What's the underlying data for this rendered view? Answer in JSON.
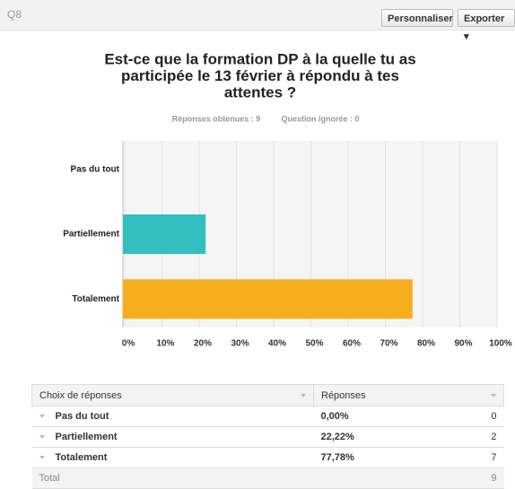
{
  "header": {
    "question": "Q8",
    "buttons": [
      "Personnaliser",
      "Exporter"
    ]
  },
  "chart_data": {
    "type": "bar",
    "orientation": "horizontal",
    "title": [
      "Est-ce que la formation DP à la quelle tu as",
      "participée le 13 février à répondu à tes",
      "attentes ?"
    ],
    "subtitle": [
      "Réponses obtenues : 9",
      "Question ignorée : 0"
    ],
    "categories": [
      "Pas du tout",
      "Partiellement",
      "Totalement"
    ],
    "values": [
      0,
      22.22,
      77.78
    ],
    "colors": [
      "#f5a81c",
      "#33bfbf",
      "#f7ae1e"
    ],
    "xlim": [
      0,
      100
    ],
    "xticks": [
      {
        "value": 0,
        "label": "0%"
      },
      {
        "value": 10,
        "label": "10%"
      },
      {
        "value": 20,
        "label": "20%"
      },
      {
        "value": 30,
        "label": "30%"
      },
      {
        "value": 40,
        "label": "40%"
      },
      {
        "value": 50,
        "label": "50%"
      },
      {
        "value": 60,
        "label": "60%"
      },
      {
        "value": 70,
        "label": "70%"
      },
      {
        "value": 80,
        "label": "80%"
      },
      {
        "value": 90,
        "label": "90%"
      },
      {
        "value": 100,
        "label": "100%"
      }
    ],
    "grid": true
  },
  "table": {
    "columns": [
      "Choix de réponses",
      "Réponses"
    ],
    "rows": [
      [
        "Pas du tout",
        "0,00%",
        0
      ],
      [
        "Partiellement",
        "22,22%",
        2
      ],
      [
        "Totalement",
        "77,78%",
        7
      ]
    ],
    "total": [
      "Total",
      9
    ]
  }
}
